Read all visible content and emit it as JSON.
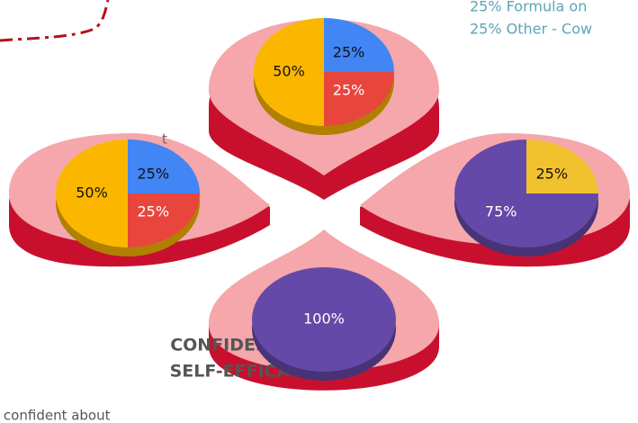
{
  "texts": {
    "top_right_1": "25% Formula on",
    "top_right_2": "25% Other - Cow",
    "left_fragment": "t",
    "heading_1": "CONFIDENCE &",
    "heading_2": "SELF-EFFICACY",
    "bottom_fragment": "l confident about"
  },
  "chart_data": [
    {
      "type": "pie",
      "values": [
        25,
        25,
        50
      ],
      "value_labels": [
        "25%",
        "25%",
        "50%"
      ],
      "colors": [
        "#4285f4",
        "#e8453c",
        "#fbb700"
      ],
      "label_colors": [
        "#111",
        "#fff",
        "#111"
      ]
    },
    {
      "type": "pie",
      "values": [
        25,
        25,
        50
      ],
      "value_labels": [
        "25%",
        "25%",
        "50%"
      ],
      "colors": [
        "#4285f4",
        "#e8453c",
        "#fbb700"
      ],
      "label_colors": [
        "#111",
        "#fff",
        "#111"
      ]
    },
    {
      "type": "pie",
      "values": [
        25,
        75
      ],
      "value_labels": [
        "25%",
        "75%"
      ],
      "colors": [
        "#f2c12e",
        "#6549a8"
      ],
      "label_colors": [
        "#111",
        "#fff"
      ]
    },
    {
      "type": "pie",
      "values": [
        100
      ],
      "value_labels": [
        "100%"
      ],
      "colors": [
        "#6549a8"
      ],
      "label_colors": [
        "#fff"
      ]
    }
  ]
}
